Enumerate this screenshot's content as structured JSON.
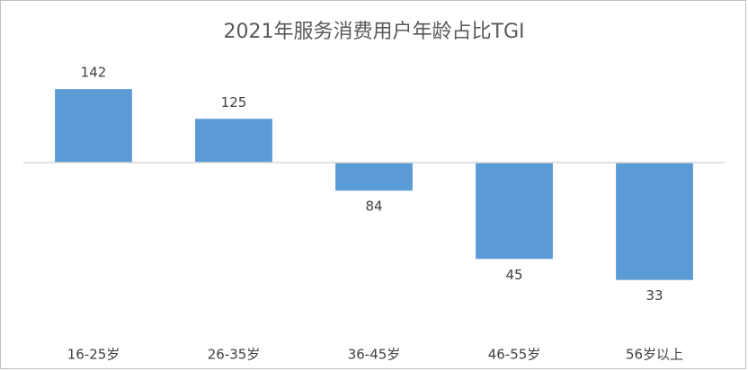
{
  "chart_data": {
    "type": "bar",
    "title": "2021年服务消费用户年龄占比TGI",
    "categories": [
      "16-25岁",
      "26-35岁",
      "36-45岁",
      "46-55岁",
      "56岁以上"
    ],
    "values": [
      142,
      125,
      84,
      45,
      33
    ],
    "color": "#5b9bd5",
    "baseline": 100,
    "ylim": [
      10,
      160
    ]
  }
}
